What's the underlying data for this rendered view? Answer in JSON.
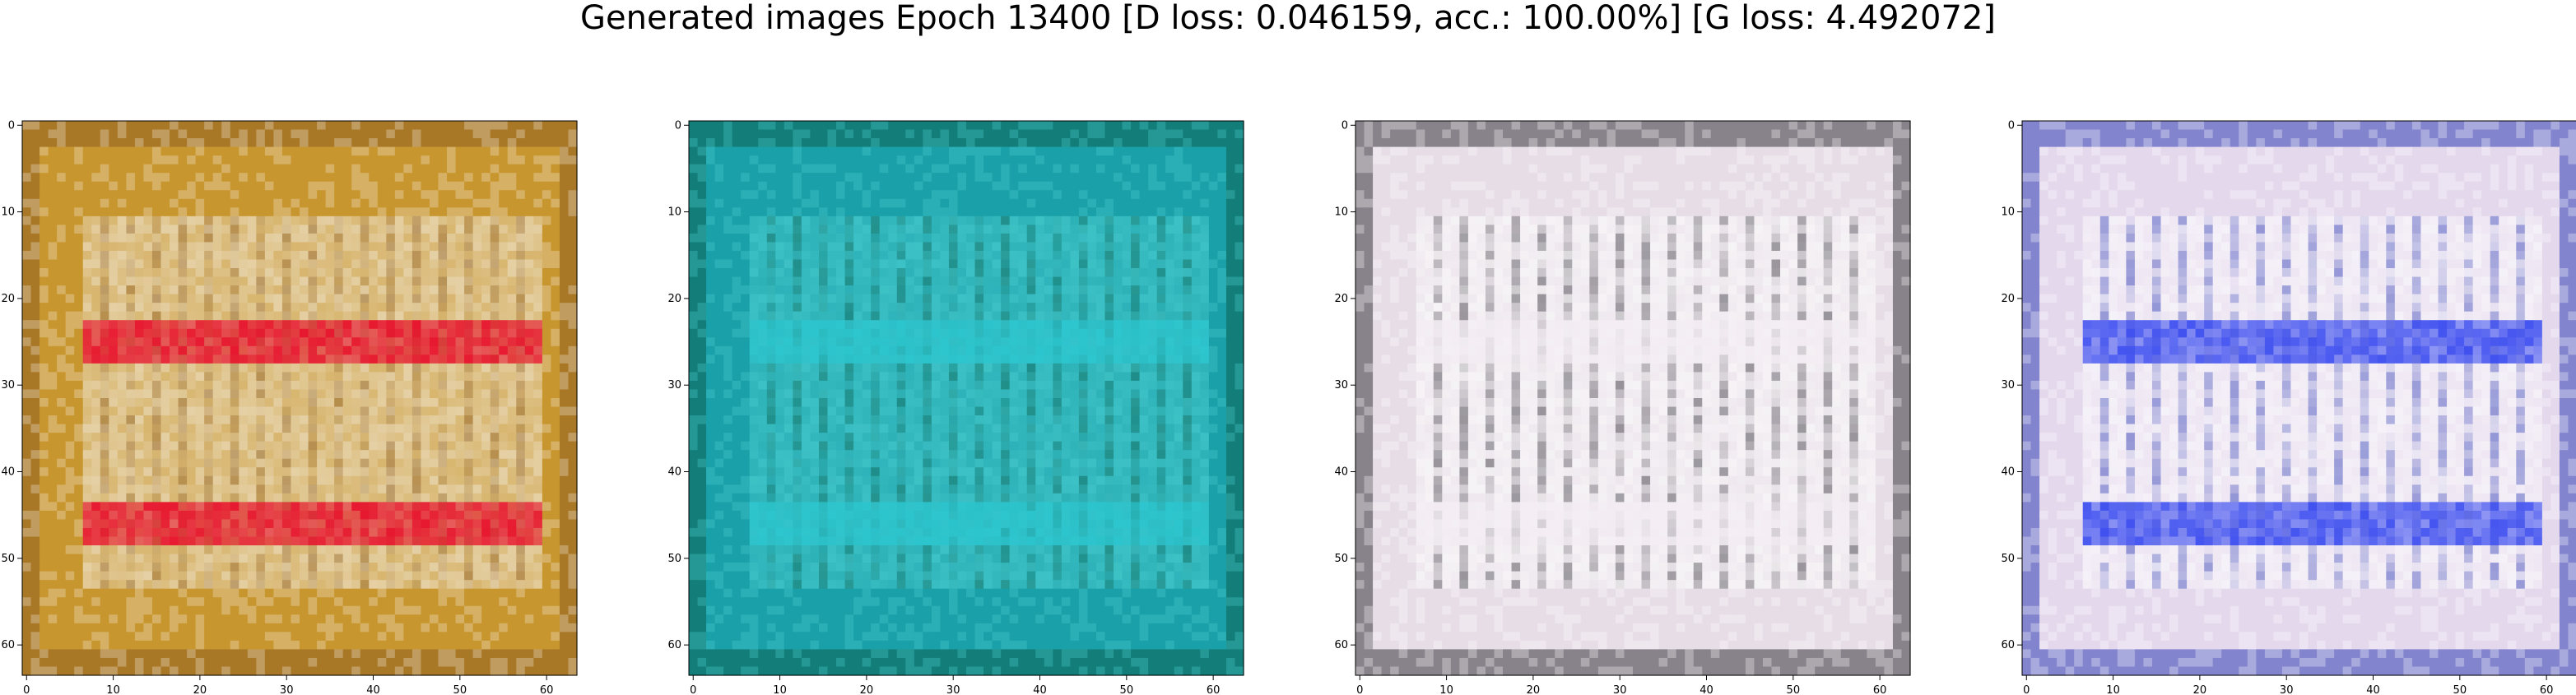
{
  "figure": {
    "title": "Generated images Epoch 13400 [D loss: 0.046159, acc.: 100.00%] [G loss: 4.492072]"
  },
  "panels": [
    {
      "x_ticks": [
        "0",
        "10",
        "20",
        "30",
        "40",
        "50",
        "60"
      ],
      "y_ticks": [
        "0",
        "10",
        "20",
        "30",
        "40",
        "50",
        "60"
      ],
      "colors": {
        "base": "#c8962e",
        "band": "#e8102c",
        "hi": "#f5f0e6",
        "edge": "#8a5a20"
      }
    },
    {
      "x_ticks": [
        "0",
        "10",
        "20",
        "30",
        "40",
        "50",
        "60"
      ],
      "y_ticks": [
        "0",
        "10",
        "20",
        "30",
        "40",
        "50",
        "60"
      ],
      "colors": {
        "base": "#1aa0a8",
        "band": "#2cc6cf",
        "hi": "#4fd3d6",
        "edge": "#0b5c4a"
      }
    },
    {
      "x_ticks": [
        "0",
        "10",
        "20",
        "30",
        "40",
        "50",
        "60"
      ],
      "y_ticks": [
        "0",
        "10",
        "20",
        "30",
        "40",
        "50",
        "60"
      ],
      "colors": {
        "base": "#e6dde6",
        "band": "#f4eef4",
        "hi": "#ffffff",
        "edge": "#2a2630"
      }
    },
    {
      "x_ticks": [
        "0",
        "10",
        "20",
        "30",
        "40",
        "50",
        "60"
      ],
      "y_ticks": [
        "0",
        "10",
        "20",
        "30",
        "40",
        "50",
        "60"
      ],
      "colors": {
        "base": "#e4d8ec",
        "band": "#3a4cf0",
        "hi": "#ffffff",
        "edge": "#2230b0"
      }
    }
  ]
}
